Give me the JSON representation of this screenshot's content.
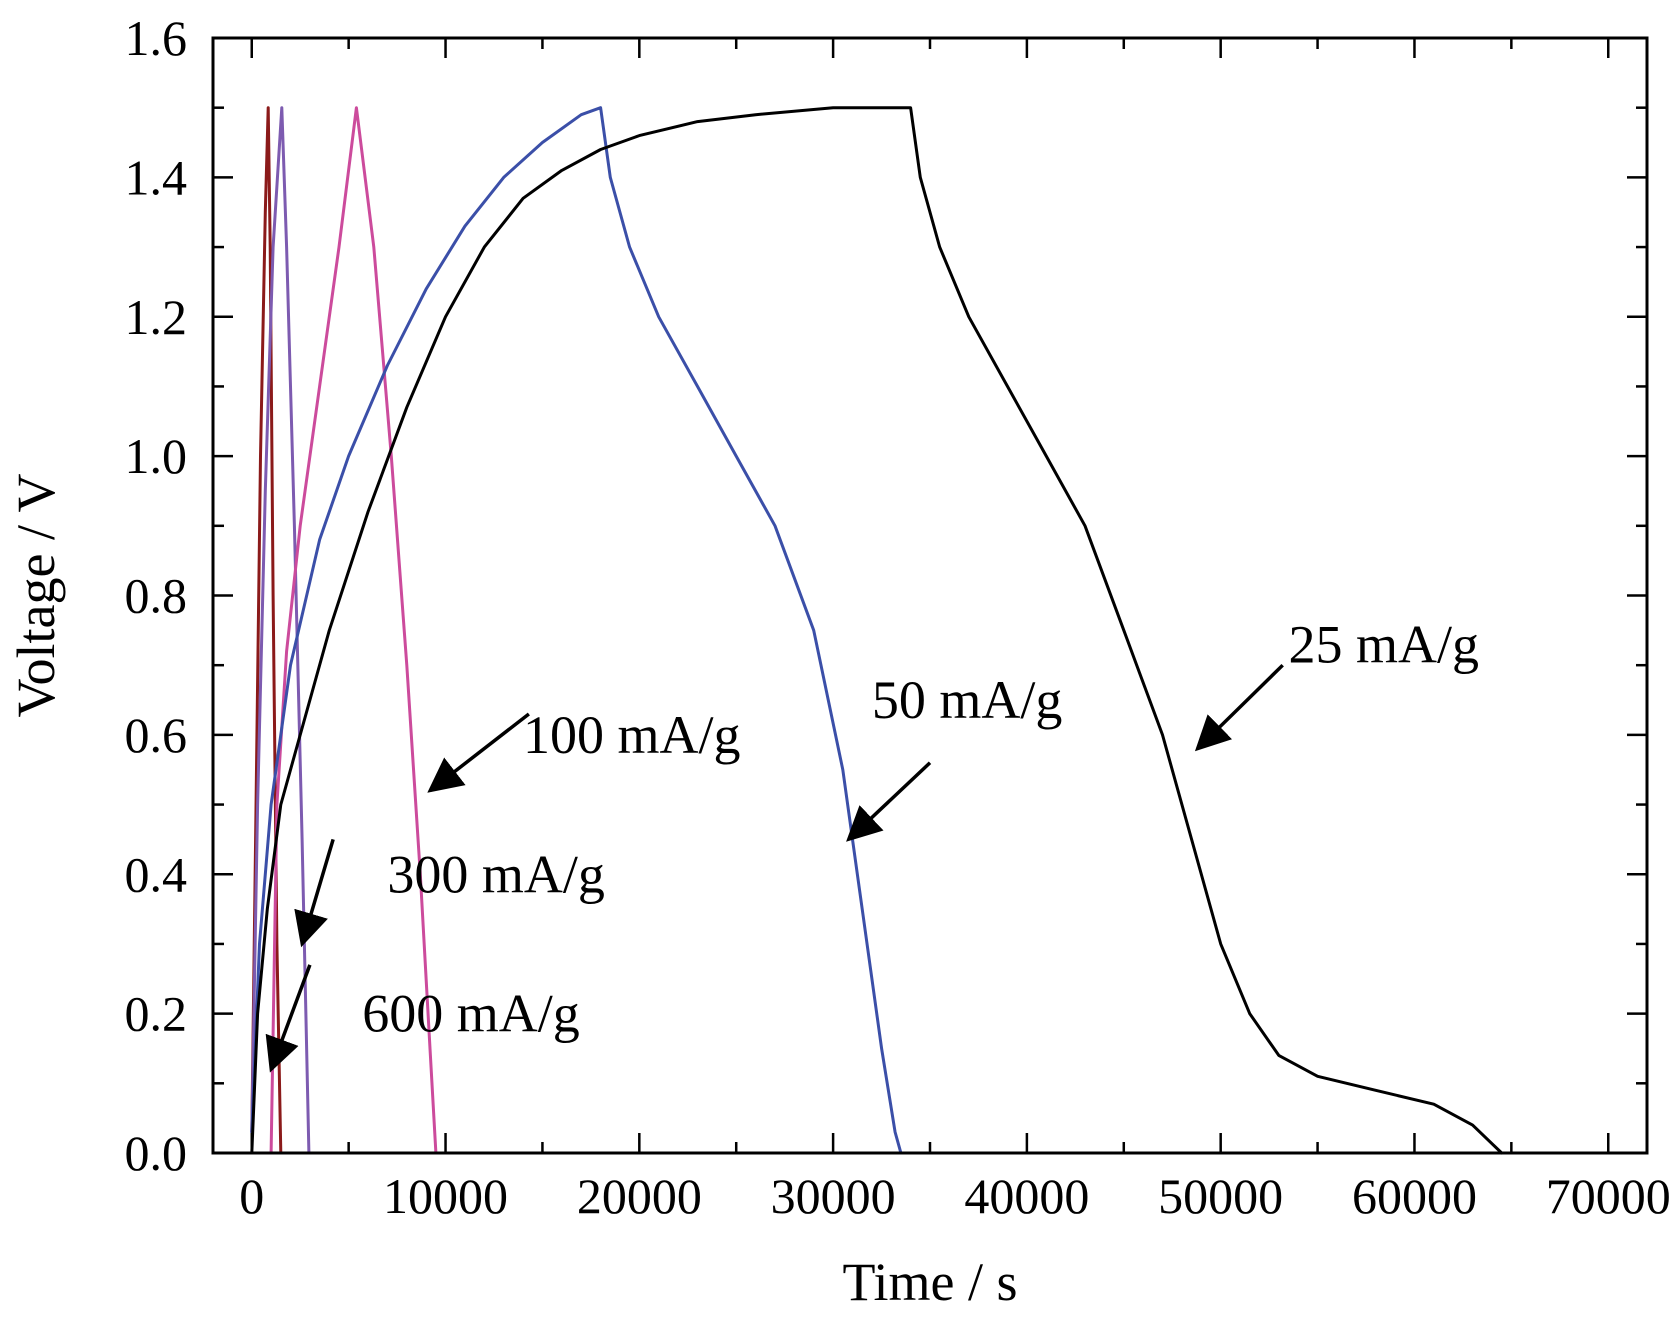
{
  "chart_data": {
    "type": "line",
    "xlabel": "Time / s",
    "ylabel": "Voltage / V",
    "xlim": [
      -2000,
      72000
    ],
    "ylim": [
      0.0,
      1.6
    ],
    "xticks": [
      0,
      10000,
      20000,
      30000,
      40000,
      50000,
      60000,
      70000
    ],
    "xtick_labels": [
      "0",
      "10000",
      "20000",
      "30000",
      "40000",
      "50000",
      "60000",
      "70000"
    ],
    "yticks": [
      0.0,
      0.2,
      0.4,
      0.6,
      0.8,
      1.0,
      1.2,
      1.4,
      1.6
    ],
    "ytick_labels": [
      "0.0",
      "0.2",
      "0.4",
      "0.6",
      "0.8",
      "1.0",
      "1.2",
      "1.4",
      "1.6"
    ],
    "grid": false,
    "series": [
      {
        "name": "600 mA/g",
        "color": "#8b1a1a",
        "points": [
          [
            0,
            0.03
          ],
          [
            200,
            0.45
          ],
          [
            450,
            1.0
          ],
          [
            700,
            1.35
          ],
          [
            850,
            1.5
          ],
          [
            950,
            1.3
          ],
          [
            1100,
            0.8
          ],
          [
            1300,
            0.3
          ],
          [
            1500,
            0.0
          ]
        ]
      },
      {
        "name": "300 mA/g",
        "color": "#7d5bb0",
        "points": [
          [
            0,
            0.03
          ],
          [
            300,
            0.5
          ],
          [
            700,
            0.95
          ],
          [
            1100,
            1.3
          ],
          [
            1550,
            1.5
          ],
          [
            1800,
            1.3
          ],
          [
            2200,
            0.9
          ],
          [
            2600,
            0.45
          ],
          [
            2950,
            0.0
          ]
        ]
      },
      {
        "name": "100 mA/g",
        "color": "#cc4b9c",
        "points": [
          [
            1000,
            0.0
          ],
          [
            1300,
            0.5
          ],
          [
            1800,
            0.72
          ],
          [
            2500,
            0.9
          ],
          [
            3500,
            1.1
          ],
          [
            4500,
            1.3
          ],
          [
            5400,
            1.5
          ],
          [
            6300,
            1.3
          ],
          [
            7200,
            1.0
          ],
          [
            8000,
            0.7
          ],
          [
            8700,
            0.4
          ],
          [
            9200,
            0.15
          ],
          [
            9500,
            0.0
          ]
        ]
      },
      {
        "name": "50 mA/g",
        "color": "#3b4fa8",
        "points": [
          [
            0,
            0.03
          ],
          [
            400,
            0.3
          ],
          [
            1000,
            0.5
          ],
          [
            2000,
            0.7
          ],
          [
            3500,
            0.88
          ],
          [
            5000,
            1.0
          ],
          [
            7000,
            1.13
          ],
          [
            9000,
            1.24
          ],
          [
            11000,
            1.33
          ],
          [
            13000,
            1.4
          ],
          [
            15000,
            1.45
          ],
          [
            17000,
            1.49
          ],
          [
            18000,
            1.5
          ],
          [
            18500,
            1.4
          ],
          [
            19500,
            1.3
          ],
          [
            21000,
            1.2
          ],
          [
            23000,
            1.1
          ],
          [
            25000,
            1.0
          ],
          [
            27000,
            0.9
          ],
          [
            29000,
            0.75
          ],
          [
            30500,
            0.55
          ],
          [
            31500,
            0.35
          ],
          [
            32500,
            0.15
          ],
          [
            33200,
            0.03
          ],
          [
            33500,
            0.0
          ]
        ]
      },
      {
        "name": "25 mA/g",
        "color": "#000000",
        "points": [
          [
            0,
            0.0
          ],
          [
            300,
            0.2
          ],
          [
            800,
            0.35
          ],
          [
            1500,
            0.5
          ],
          [
            2500,
            0.6
          ],
          [
            4000,
            0.75
          ],
          [
            6000,
            0.92
          ],
          [
            8000,
            1.07
          ],
          [
            10000,
            1.2
          ],
          [
            12000,
            1.3
          ],
          [
            14000,
            1.37
          ],
          [
            16000,
            1.41
          ],
          [
            18000,
            1.44
          ],
          [
            20000,
            1.46
          ],
          [
            23000,
            1.48
          ],
          [
            26000,
            1.49
          ],
          [
            30000,
            1.5
          ],
          [
            34000,
            1.5
          ],
          [
            34500,
            1.4
          ],
          [
            35500,
            1.3
          ],
          [
            37000,
            1.2
          ],
          [
            39000,
            1.1
          ],
          [
            41000,
            1.0
          ],
          [
            43000,
            0.9
          ],
          [
            45000,
            0.75
          ],
          [
            47000,
            0.6
          ],
          [
            48500,
            0.45
          ],
          [
            50000,
            0.3
          ],
          [
            51500,
            0.2
          ],
          [
            53000,
            0.14
          ],
          [
            55000,
            0.11
          ],
          [
            58000,
            0.09
          ],
          [
            61000,
            0.07
          ],
          [
            63000,
            0.04
          ],
          [
            64500,
            0.0
          ]
        ]
      }
    ],
    "annotations": [
      {
        "text": "600 mA/g",
        "label_at": [
          5700,
          0.2
        ],
        "arrow_from": [
          3000,
          0.27
        ],
        "arrow_to": [
          1000,
          0.12
        ]
      },
      {
        "text": "300 mA/g",
        "label_at": [
          7000,
          0.4
        ],
        "arrow_from": [
          4200,
          0.45
        ],
        "arrow_to": [
          2600,
          0.3
        ]
      },
      {
        "text": "100 mA/g",
        "label_at": [
          14000,
          0.6
        ],
        "arrow_from": [
          14300,
          0.63
        ],
        "arrow_to": [
          9200,
          0.52
        ]
      },
      {
        "text": "50 mA/g",
        "label_at": [
          32000,
          0.65
        ],
        "arrow_from": [
          35000,
          0.56
        ],
        "arrow_to": [
          30800,
          0.45
        ]
      },
      {
        "text": "25 mA/g",
        "label_at": [
          53500,
          0.73
        ],
        "arrow_from": [
          53200,
          0.7
        ],
        "arrow_to": [
          48800,
          0.58
        ]
      }
    ]
  }
}
